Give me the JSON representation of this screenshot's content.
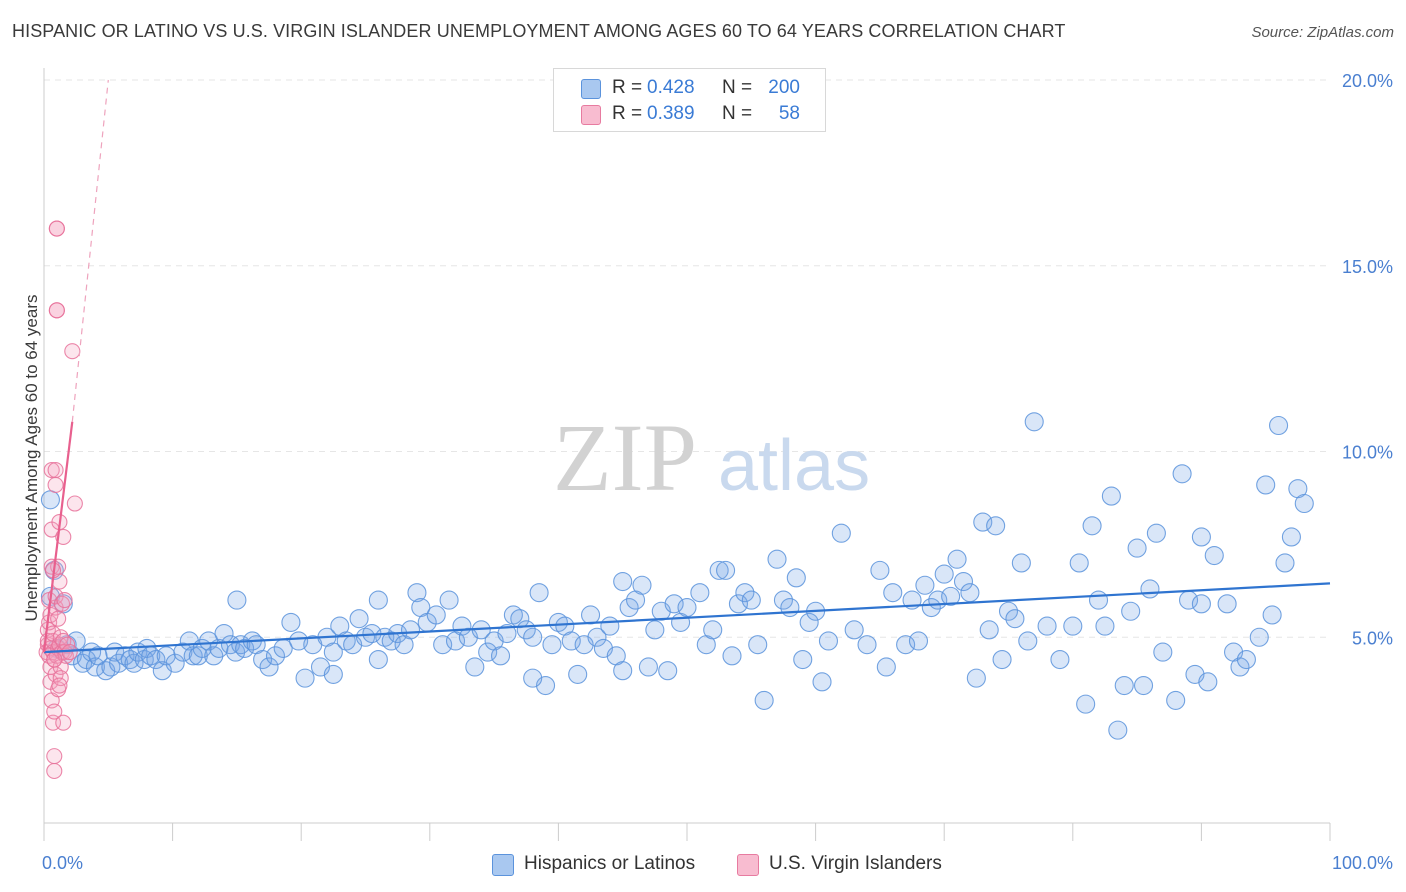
{
  "title": "HISPANIC OR LATINO VS U.S. VIRGIN ISLANDER UNEMPLOYMENT AMONG AGES 60 TO 64 YEARS CORRELATION CHART",
  "source": "Source: ZipAtlas.com",
  "watermark": {
    "zip": "ZIP",
    "atlas": "atlas"
  },
  "legend": {
    "rows": [
      {
        "r_label": "R =",
        "r_value": "0.428",
        "n_label": "N =",
        "n_value": "200",
        "color": "#a9c8f0",
        "border": "#5b93dc"
      },
      {
        "r_label": "R =",
        "r_value": "0.389",
        "n_label": "N =",
        "n_value": "58",
        "color": "#f8bcd0",
        "border": "#e77ba0"
      }
    ]
  },
  "bottom_legend": [
    {
      "label": "Hispanics or Latinos",
      "color": "#a9c8f0",
      "border": "#5b93dc"
    },
    {
      "label": "U.S. Virgin Islanders",
      "color": "#f8bcd0",
      "border": "#e77ba0"
    }
  ],
  "colors": {
    "blue": "#5b93dc",
    "blue_fill": "rgba(120,165,230,0.28)",
    "pink": "#e8719a",
    "pink_fill": "rgba(245,160,190,0.28)",
    "grid": "#e6e6e6",
    "axis_text": "#4a7fd0"
  },
  "chart_data": {
    "type": "scatter",
    "title": "HISPANIC OR LATINO VS U.S. VIRGIN ISLANDER UNEMPLOYMENT AMONG AGES 60 TO 64 YEARS CORRELATION CHART",
    "xlabel": "",
    "ylabel": "Unemployment Among Ages 60 to 64 years",
    "xlim": [
      0,
      100
    ],
    "ylim": [
      0,
      20
    ],
    "x_tick_labels": [
      "0.0%",
      "100.0%"
    ],
    "y_ticks": [
      5,
      10,
      15,
      20
    ],
    "y_tick_labels": [
      "5.0%",
      "10.0%",
      "15.0%",
      "20.0%"
    ],
    "grid": true,
    "series": [
      {
        "name": "Hispanics or Latinos",
        "trend": {
          "x": [
            0,
            100
          ],
          "y": [
            4.6,
            6.45
          ],
          "style": "solid"
        },
        "points": [
          [
            0.5,
            6.1
          ],
          [
            0.5,
            8.7
          ],
          [
            0.8,
            6.8
          ],
          [
            1.0,
            4.7
          ],
          [
            1.5,
            5.9
          ],
          [
            1.8,
            4.8
          ],
          [
            2.2,
            4.5
          ],
          [
            2.5,
            4.9
          ],
          [
            3.0,
            4.3
          ],
          [
            3.3,
            4.4
          ],
          [
            3.7,
            4.6
          ],
          [
            4.0,
            4.2
          ],
          [
            4.2,
            4.5
          ],
          [
            4.8,
            4.1
          ],
          [
            5.2,
            4.2
          ],
          [
            5.5,
            4.6
          ],
          [
            5.8,
            4.3
          ],
          [
            6.3,
            4.5
          ],
          [
            6.7,
            4.4
          ],
          [
            7.0,
            4.3
          ],
          [
            7.3,
            4.6
          ],
          [
            7.8,
            4.4
          ],
          [
            8.0,
            4.7
          ],
          [
            8.3,
            4.5
          ],
          [
            8.7,
            4.4
          ],
          [
            9.2,
            4.1
          ],
          [
            9.5,
            4.5
          ],
          [
            10.2,
            4.3
          ],
          [
            10.8,
            4.6
          ],
          [
            11.3,
            4.9
          ],
          [
            11.6,
            4.5
          ],
          [
            12.0,
            4.5
          ],
          [
            12.3,
            4.7
          ],
          [
            12.8,
            4.9
          ],
          [
            13.2,
            4.5
          ],
          [
            13.6,
            4.7
          ],
          [
            14.0,
            5.1
          ],
          [
            14.5,
            4.8
          ],
          [
            14.9,
            4.6
          ],
          [
            15.3,
            4.8
          ],
          [
            15.6,
            4.7
          ],
          [
            16.2,
            4.9
          ],
          [
            16.5,
            4.8
          ],
          [
            17.0,
            4.4
          ],
          [
            17.5,
            4.2
          ],
          [
            18.0,
            4.5
          ],
          [
            18.6,
            4.7
          ],
          [
            19.2,
            5.4
          ],
          [
            19.8,
            4.9
          ],
          [
            20.3,
            3.9
          ],
          [
            20.9,
            4.8
          ],
          [
            21.5,
            4.2
          ],
          [
            22.0,
            5.0
          ],
          [
            22.5,
            4.6
          ],
          [
            23.0,
            5.3
          ],
          [
            23.5,
            4.9
          ],
          [
            24.0,
            4.8
          ],
          [
            24.5,
            5.5
          ],
          [
            25.0,
            5.0
          ],
          [
            25.5,
            5.1
          ],
          [
            26.0,
            6.0
          ],
          [
            26.5,
            5.0
          ],
          [
            27.0,
            4.9
          ],
          [
            27.5,
            5.1
          ],
          [
            28.0,
            4.8
          ],
          [
            28.5,
            5.2
          ],
          [
            29.0,
            6.2
          ],
          [
            29.3,
            5.8
          ],
          [
            29.8,
            5.4
          ],
          [
            30.5,
            5.6
          ],
          [
            31.0,
            4.8
          ],
          [
            31.5,
            6.0
          ],
          [
            32.0,
            4.9
          ],
          [
            32.5,
            5.3
          ],
          [
            33.0,
            5.0
          ],
          [
            33.5,
            4.2
          ],
          [
            34.0,
            5.2
          ],
          [
            34.5,
            4.6
          ],
          [
            35.0,
            4.9
          ],
          [
            35.5,
            4.5
          ],
          [
            36.0,
            5.1
          ],
          [
            36.5,
            5.6
          ],
          [
            37.0,
            5.5
          ],
          [
            37.5,
            5.2
          ],
          [
            38.0,
            5.0
          ],
          [
            38.5,
            6.2
          ],
          [
            39.0,
            3.7
          ],
          [
            39.5,
            4.8
          ],
          [
            40.0,
            5.4
          ],
          [
            40.5,
            5.3
          ],
          [
            41.0,
            4.9
          ],
          [
            41.5,
            4.0
          ],
          [
            42.0,
            4.8
          ],
          [
            42.5,
            5.6
          ],
          [
            43.0,
            5.0
          ],
          [
            43.5,
            4.7
          ],
          [
            44.0,
            5.3
          ],
          [
            44.5,
            4.5
          ],
          [
            45.0,
            6.5
          ],
          [
            45.5,
            5.8
          ],
          [
            46.0,
            6.0
          ],
          [
            46.5,
            6.4
          ],
          [
            47.0,
            4.2
          ],
          [
            47.5,
            5.2
          ],
          [
            48.0,
            5.7
          ],
          [
            48.5,
            4.1
          ],
          [
            49.0,
            5.9
          ],
          [
            49.5,
            5.4
          ],
          [
            50.0,
            5.8
          ],
          [
            51.0,
            6.2
          ],
          [
            51.5,
            4.8
          ],
          [
            52.0,
            5.2
          ],
          [
            52.5,
            6.8
          ],
          [
            53.0,
            6.8
          ],
          [
            53.5,
            4.5
          ],
          [
            54.0,
            5.9
          ],
          [
            54.5,
            6.2
          ],
          [
            55.0,
            6.0
          ],
          [
            55.5,
            4.8
          ],
          [
            56.0,
            3.3
          ],
          [
            57.0,
            7.1
          ],
          [
            57.5,
            6.0
          ],
          [
            58.0,
            5.8
          ],
          [
            58.5,
            6.6
          ],
          [
            59.0,
            4.4
          ],
          [
            59.5,
            5.4
          ],
          [
            60.0,
            5.7
          ],
          [
            61.0,
            4.9
          ],
          [
            62.0,
            7.8
          ],
          [
            63.0,
            5.2
          ],
          [
            64.0,
            4.8
          ],
          [
            65.0,
            6.8
          ],
          [
            65.5,
            4.2
          ],
          [
            66.0,
            6.2
          ],
          [
            67.0,
            4.8
          ],
          [
            67.5,
            6.0
          ],
          [
            68.0,
            4.9
          ],
          [
            68.5,
            6.4
          ],
          [
            69.0,
            5.8
          ],
          [
            69.5,
            6.0
          ],
          [
            70.0,
            6.7
          ],
          [
            70.5,
            6.1
          ],
          [
            71.0,
            7.1
          ],
          [
            71.5,
            6.5
          ],
          [
            72.0,
            6.2
          ],
          [
            73.0,
            8.1
          ],
          [
            73.5,
            5.2
          ],
          [
            74.0,
            8.0
          ],
          [
            74.5,
            4.4
          ],
          [
            75.0,
            5.7
          ],
          [
            75.5,
            5.5
          ],
          [
            76.0,
            7.0
          ],
          [
            76.5,
            4.9
          ],
          [
            77.0,
            10.8
          ],
          [
            78.0,
            5.3
          ],
          [
            79.0,
            4.4
          ],
          [
            80.0,
            5.3
          ],
          [
            80.5,
            7.0
          ],
          [
            81.0,
            3.2
          ],
          [
            81.5,
            8.0
          ],
          [
            82.0,
            6.0
          ],
          [
            82.5,
            5.3
          ],
          [
            83.0,
            8.8
          ],
          [
            83.5,
            2.5
          ],
          [
            84.0,
            3.7
          ],
          [
            85.0,
            7.4
          ],
          [
            85.5,
            3.7
          ],
          [
            86.0,
            6.3
          ],
          [
            86.5,
            7.8
          ],
          [
            87.0,
            4.6
          ],
          [
            88.0,
            3.3
          ],
          [
            88.5,
            9.4
          ],
          [
            89.0,
            6.0
          ],
          [
            89.5,
            4.0
          ],
          [
            90.0,
            7.7
          ],
          [
            90.5,
            3.8
          ],
          [
            91.0,
            7.2
          ],
          [
            92.0,
            5.9
          ],
          [
            92.5,
            4.6
          ],
          [
            93.0,
            4.2
          ],
          [
            94.5,
            5.0
          ],
          [
            95.0,
            9.1
          ],
          [
            96.0,
            10.7
          ],
          [
            96.5,
            7.0
          ],
          [
            97.0,
            7.7
          ],
          [
            97.5,
            9.0
          ],
          [
            98.0,
            8.6
          ],
          [
            15.0,
            6.0
          ],
          [
            22.5,
            4.0
          ],
          [
            26.0,
            4.4
          ],
          [
            38.0,
            3.9
          ],
          [
            45.0,
            4.1
          ],
          [
            60.5,
            3.8
          ],
          [
            72.5,
            3.9
          ],
          [
            84.5,
            5.7
          ],
          [
            90.0,
            5.9
          ],
          [
            93.5,
            4.4
          ],
          [
            95.5,
            5.6
          ]
        ]
      },
      {
        "name": "U.S. Virgin Islanders",
        "trend": {
          "x": [
            0,
            2.2
          ],
          "y": [
            4.6,
            10.8
          ],
          "style": "solid"
        },
        "trend_extended": {
          "x": [
            2.2,
            5.0
          ],
          "y": [
            10.8,
            20.0
          ],
          "style": "dashed"
        },
        "points": [
          [
            0.2,
            4.6
          ],
          [
            0.3,
            4.8
          ],
          [
            0.3,
            5.2
          ],
          [
            0.3,
            4.9
          ],
          [
            0.4,
            5.4
          ],
          [
            0.4,
            4.5
          ],
          [
            0.4,
            6.0
          ],
          [
            0.5,
            4.7
          ],
          [
            0.5,
            3.8
          ],
          [
            0.5,
            4.2
          ],
          [
            0.5,
            5.6
          ],
          [
            0.6,
            6.9
          ],
          [
            0.6,
            7.9
          ],
          [
            0.6,
            9.5
          ],
          [
            0.6,
            3.3
          ],
          [
            0.7,
            4.6
          ],
          [
            0.7,
            4.9
          ],
          [
            0.7,
            5.1
          ],
          [
            0.7,
            2.7
          ],
          [
            0.8,
            1.4
          ],
          [
            0.8,
            1.8
          ],
          [
            0.8,
            3.0
          ],
          [
            0.8,
            4.4
          ],
          [
            0.9,
            4.0
          ],
          [
            0.9,
            5.8
          ],
          [
            0.9,
            6.1
          ],
          [
            0.9,
            9.1
          ],
          [
            1.0,
            16.0
          ],
          [
            1.0,
            13.8
          ],
          [
            1.0,
            4.5
          ],
          [
            1.1,
            4.7
          ],
          [
            1.1,
            5.5
          ],
          [
            1.1,
            6.9
          ],
          [
            1.1,
            3.6
          ],
          [
            1.2,
            4.8
          ],
          [
            1.2,
            6.5
          ],
          [
            1.2,
            8.1
          ],
          [
            1.3,
            4.2
          ],
          [
            1.3,
            5.0
          ],
          [
            1.3,
            3.9
          ],
          [
            1.4,
            4.6
          ],
          [
            1.4,
            5.9
          ],
          [
            1.5,
            4.9
          ],
          [
            1.5,
            7.7
          ],
          [
            1.5,
            2.7
          ],
          [
            1.6,
            4.6
          ],
          [
            1.6,
            6.0
          ],
          [
            1.7,
            4.5
          ],
          [
            1.8,
            4.8
          ],
          [
            2.0,
            4.6
          ],
          [
            2.2,
            12.7
          ],
          [
            1.0,
            16.0
          ],
          [
            1.0,
            13.8
          ],
          [
            2.4,
            8.6
          ],
          [
            0.9,
            9.5
          ],
          [
            0.7,
            6.8
          ],
          [
            1.2,
            3.7
          ],
          [
            0.8,
            4.4
          ]
        ]
      }
    ]
  }
}
